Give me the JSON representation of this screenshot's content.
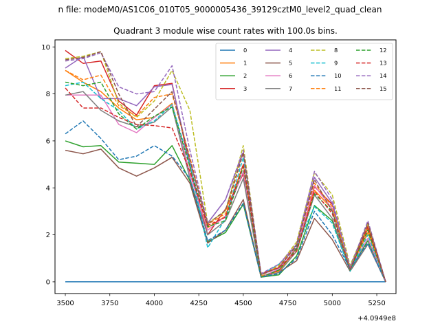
{
  "header": {
    "suptitle": "n file: modeM0/AS1C06_010T05_9000005436_39129cztM0_level2_quad_clean",
    "title": "Quadrant 3 module wise count rates with 100.0s bins."
  },
  "chart_data": {
    "type": "line",
    "title": "Quadrant 3 module wise count rates with 100.0s bins.",
    "xlabel": "",
    "ylabel": "",
    "x_offset_label": "+4.0949e8",
    "x": [
      3500,
      3600,
      3700,
      3800,
      3900,
      4000,
      4100,
      4200,
      4300,
      4400,
      4500,
      4600,
      4700,
      4800,
      4900,
      5000,
      5100,
      5200,
      5300
    ],
    "xlim": [
      3442,
      5358
    ],
    "ylim": [
      -0.5,
      10.3
    ],
    "xticks": [
      3500,
      3750,
      4000,
      4250,
      4500,
      4750,
      5000,
      5250
    ],
    "yticks": [
      0,
      2,
      4,
      6,
      8,
      10
    ],
    "grid": false,
    "legend": {
      "position": "top-right",
      "columns": 4
    },
    "series": [
      {
        "name": "0",
        "color": "#1f77b4",
        "dash": "solid",
        "values": [
          0,
          0,
          0,
          0,
          0,
          0,
          0,
          0,
          0,
          0,
          0,
          0,
          0,
          0,
          0,
          0,
          0,
          0,
          0
        ]
      },
      {
        "name": "1",
        "color": "#ff7f0e",
        "dash": "solid",
        "values": [
          9.0,
          8.5,
          8.1,
          7.4,
          6.9,
          7.0,
          7.6,
          4.6,
          2.3,
          2.8,
          5.0,
          0.25,
          0.45,
          1.4,
          3.9,
          3.1,
          0.55,
          2.1,
          0
        ]
      },
      {
        "name": "2",
        "color": "#2ca02c",
        "dash": "solid",
        "values": [
          6.0,
          5.75,
          5.8,
          5.1,
          5.05,
          5.0,
          5.8,
          4.3,
          1.7,
          2.1,
          3.3,
          0.2,
          0.3,
          1.1,
          3.25,
          2.6,
          0.5,
          1.75,
          0
        ]
      },
      {
        "name": "3",
        "color": "#d62728",
        "dash": "solid",
        "values": [
          9.85,
          9.3,
          9.4,
          7.7,
          7.1,
          8.35,
          8.45,
          4.9,
          2.0,
          3.1,
          4.6,
          0.2,
          0.5,
          1.45,
          4.05,
          3.3,
          0.6,
          2.3,
          0
        ]
      },
      {
        "name": "4",
        "color": "#9467bd",
        "dash": "solid",
        "values": [
          9.1,
          9.6,
          7.8,
          7.8,
          7.5,
          8.3,
          8.4,
          5.1,
          2.5,
          3.5,
          5.5,
          0.3,
          0.6,
          1.6,
          4.45,
          3.35,
          0.6,
          2.5,
          0
        ]
      },
      {
        "name": "5",
        "color": "#8c564b",
        "dash": "solid",
        "values": [
          5.6,
          5.45,
          5.65,
          4.85,
          4.5,
          4.85,
          5.3,
          4.2,
          1.65,
          2.2,
          3.5,
          0.2,
          0.4,
          0.9,
          2.7,
          1.8,
          0.45,
          1.6,
          0
        ]
      },
      {
        "name": "6",
        "color": "#e377c2",
        "dash": "solid",
        "values": [
          7.95,
          7.95,
          7.95,
          6.7,
          6.35,
          7.0,
          7.55,
          4.6,
          2.2,
          2.8,
          4.7,
          0.2,
          0.55,
          1.4,
          4.1,
          3.1,
          0.55,
          1.85,
          0
        ]
      },
      {
        "name": "7",
        "color": "#7f7f7f",
        "dash": "solid",
        "values": [
          7.95,
          8.1,
          7.3,
          6.85,
          6.6,
          6.8,
          7.45,
          4.4,
          2.0,
          2.6,
          4.4,
          0.2,
          0.4,
          1.3,
          3.7,
          2.7,
          0.5,
          1.6,
          0
        ]
      },
      {
        "name": "8",
        "color": "#bcbd22",
        "dash": "dashed",
        "values": [
          9.5,
          9.6,
          9.8,
          7.6,
          7.0,
          7.7,
          9.0,
          7.3,
          2.5,
          3.0,
          5.8,
          0.3,
          0.7,
          1.7,
          4.65,
          3.7,
          0.7,
          2.45,
          0
        ]
      },
      {
        "name": "9",
        "color": "#17becf",
        "dash": "dashed",
        "values": [
          8.35,
          8.5,
          7.8,
          7.3,
          6.5,
          6.85,
          7.55,
          5.0,
          1.45,
          2.7,
          5.3,
          0.3,
          0.75,
          1.5,
          3.2,
          2.5,
          0.45,
          2.0,
          0
        ]
      },
      {
        "name": "10",
        "color": "#1f77b4",
        "dash": "dashed",
        "values": [
          6.3,
          6.85,
          6.1,
          5.2,
          5.35,
          5.8,
          5.35,
          4.4,
          1.75,
          2.2,
          3.35,
          0.2,
          0.35,
          1.0,
          3.0,
          2.0,
          0.55,
          1.65,
          0
        ]
      },
      {
        "name": "11",
        "color": "#ff7f0e",
        "dash": "dashed",
        "values": [
          9.0,
          8.6,
          8.8,
          7.5,
          7.05,
          7.85,
          8.0,
          5.3,
          2.45,
          2.9,
          5.5,
          0.3,
          0.65,
          1.6,
          4.2,
          3.2,
          0.55,
          2.25,
          0
        ]
      },
      {
        "name": "12",
        "color": "#2ca02c",
        "dash": "dashed",
        "values": [
          8.5,
          8.35,
          8.5,
          7.15,
          6.5,
          7.05,
          7.45,
          4.9,
          2.35,
          2.6,
          4.9,
          0.2,
          0.5,
          1.4,
          3.75,
          3.0,
          0.5,
          2.2,
          0
        ]
      },
      {
        "name": "13",
        "color": "#d62728",
        "dash": "dashed",
        "values": [
          8.25,
          7.4,
          7.4,
          7.0,
          6.7,
          6.65,
          6.55,
          4.7,
          2.4,
          2.75,
          5.0,
          0.35,
          0.6,
          1.3,
          3.85,
          2.9,
          0.5,
          2.35,
          0
        ]
      },
      {
        "name": "14",
        "color": "#9467bd",
        "dash": "dashed",
        "values": [
          9.4,
          9.5,
          9.75,
          8.3,
          8.0,
          8.1,
          9.2,
          5.6,
          2.5,
          3.5,
          5.6,
          0.35,
          0.75,
          1.6,
          4.7,
          3.5,
          0.6,
          2.6,
          0
        ]
      },
      {
        "name": "15",
        "color": "#8c564b",
        "dash": "dashed",
        "values": [
          9.45,
          9.55,
          9.8,
          8.0,
          6.6,
          7.35,
          8.1,
          5.2,
          2.45,
          3.05,
          5.5,
          0.3,
          0.6,
          1.55,
          4.35,
          3.0,
          0.5,
          2.5,
          0
        ]
      }
    ]
  }
}
